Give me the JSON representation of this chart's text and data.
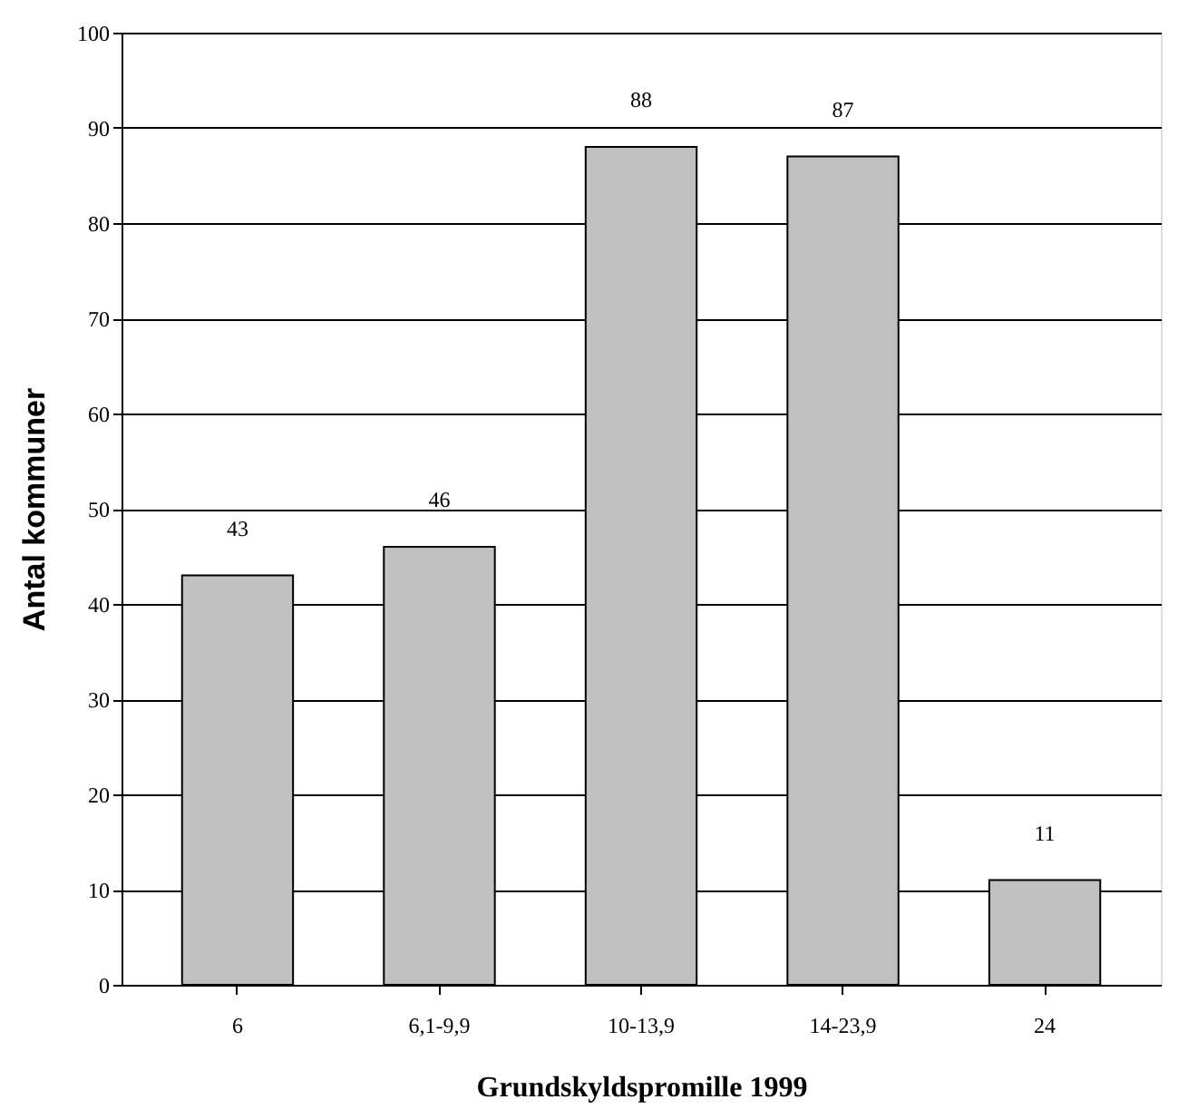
{
  "chart_data": {
    "type": "bar",
    "xlabel": "Grundskyldspromille 1999",
    "ylabel": "Antal kommuner",
    "categories": [
      "6",
      "6,1-9,9",
      "10-13,9",
      "14-23,9",
      "24"
    ],
    "values": [
      43,
      46,
      88,
      87,
      11
    ],
    "color": "#c0c0c0",
    "ylim": [
      0,
      100
    ],
    "yticks": [
      0,
      10,
      20,
      30,
      40,
      50,
      60,
      70,
      80,
      90,
      100
    ],
    "grid": "y",
    "data_labels": true
  }
}
